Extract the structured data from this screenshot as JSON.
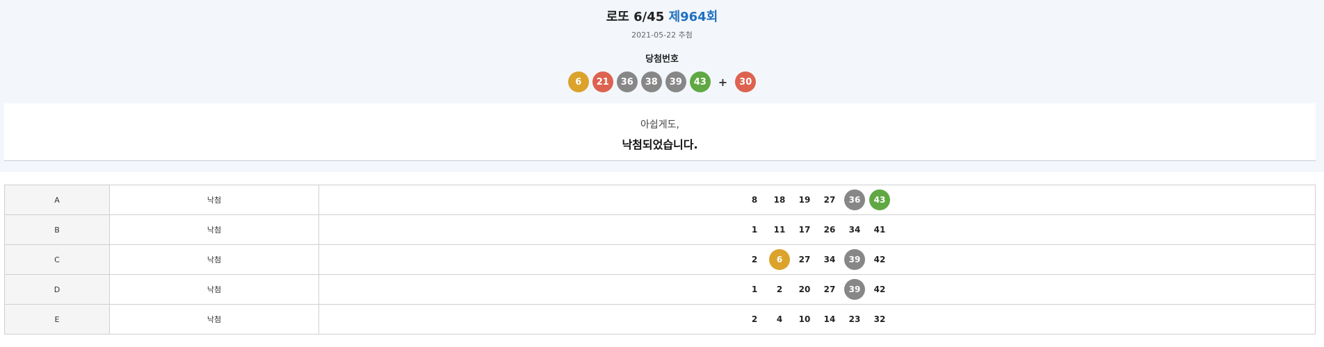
{
  "header": {
    "title_prefix": "로또 6/45",
    "round": "제964회",
    "draw_date": "2021-05-22 추첨",
    "winning_label": "당첨번호",
    "winning_numbers": [
      "6",
      "21",
      "36",
      "38",
      "39",
      "43"
    ],
    "plus": "+",
    "bonus_number": "30"
  },
  "result": {
    "subtitle": "아쉽게도,",
    "message": "낙첨되었습니다."
  },
  "colors": {
    "yellow": "#dba32b",
    "red": "#dd6250",
    "gray": "#878787",
    "green": "#60a843",
    "accent": "#1e6fbf"
  },
  "games": [
    {
      "letter": "A",
      "status": "낙첨",
      "numbers": [
        "8",
        "18",
        "19",
        "27",
        "36",
        "43"
      ]
    },
    {
      "letter": "B",
      "status": "낙첨",
      "numbers": [
        "1",
        "11",
        "17",
        "26",
        "34",
        "41"
      ]
    },
    {
      "letter": "C",
      "status": "낙첨",
      "numbers": [
        "2",
        "6",
        "27",
        "34",
        "39",
        "42"
      ]
    },
    {
      "letter": "D",
      "status": "낙첨",
      "numbers": [
        "1",
        "2",
        "20",
        "27",
        "39",
        "42"
      ]
    },
    {
      "letter": "E",
      "status": "낙첨",
      "numbers": [
        "2",
        "4",
        "10",
        "14",
        "23",
        "32"
      ]
    }
  ]
}
